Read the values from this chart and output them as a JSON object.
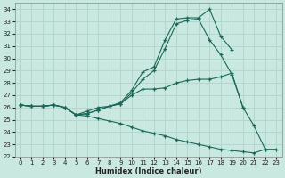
{
  "xlabel": "Humidex (Indice chaleur)",
  "bg_color": "#c8e8e0",
  "grid_color": "#b0d4cc",
  "line_color": "#1a6858",
  "xlim": [
    -0.5,
    23.5
  ],
  "ylim": [
    22,
    34.5
  ],
  "yticks": [
    22,
    23,
    24,
    25,
    26,
    27,
    28,
    29,
    30,
    31,
    32,
    33,
    34
  ],
  "xticks": [
    0,
    1,
    2,
    3,
    4,
    5,
    6,
    7,
    8,
    9,
    10,
    11,
    12,
    13,
    14,
    15,
    16,
    17,
    18,
    19,
    20,
    21,
    22,
    23
  ],
  "lines": [
    {
      "x": [
        0,
        1,
        2,
        3,
        4,
        5,
        6,
        7,
        8,
        9,
        10,
        11,
        12,
        13,
        14,
        15,
        16,
        17,
        18,
        19
      ],
      "y": [
        26.2,
        26.1,
        26.1,
        26.2,
        26.0,
        25.4,
        25.7,
        26.0,
        26.1,
        26.4,
        27.4,
        28.9,
        29.3,
        31.5,
        33.2,
        33.3,
        33.3,
        34.0,
        31.8,
        30.7
      ]
    },
    {
      "x": [
        0,
        1,
        2,
        3,
        4,
        5,
        6,
        7,
        8,
        9,
        10,
        11,
        12,
        13,
        14,
        15,
        16,
        17,
        18,
        19,
        20
      ],
      "y": [
        26.2,
        26.1,
        26.1,
        26.2,
        26.0,
        25.4,
        25.5,
        25.8,
        26.1,
        26.3,
        27.2,
        28.3,
        29.0,
        30.8,
        32.8,
        33.1,
        33.2,
        31.5,
        30.3,
        28.7,
        26.0
      ]
    },
    {
      "x": [
        0,
        1,
        2,
        3,
        4,
        5,
        6,
        7,
        8,
        9,
        10,
        11,
        12,
        13,
        14,
        15,
        16,
        17,
        18,
        19,
        20,
        21,
        22
      ],
      "y": [
        26.2,
        26.1,
        26.1,
        26.2,
        26.0,
        25.4,
        25.5,
        25.8,
        26.1,
        26.3,
        27.0,
        27.5,
        27.5,
        27.6,
        28.0,
        28.2,
        28.3,
        28.3,
        28.5,
        28.8,
        26.0,
        24.5,
        22.6
      ]
    },
    {
      "x": [
        0,
        1,
        2,
        3,
        4,
        5,
        6,
        7,
        8,
        9,
        10,
        11,
        12,
        13,
        14,
        15,
        16,
        17,
        18,
        19,
        20,
        21,
        22,
        23
      ],
      "y": [
        26.2,
        26.1,
        26.1,
        26.2,
        26.0,
        25.4,
        25.3,
        25.1,
        24.9,
        24.7,
        24.4,
        24.1,
        23.9,
        23.7,
        23.4,
        23.2,
        23.0,
        22.8,
        22.6,
        22.5,
        22.4,
        22.3,
        22.6,
        22.6
      ]
    }
  ]
}
